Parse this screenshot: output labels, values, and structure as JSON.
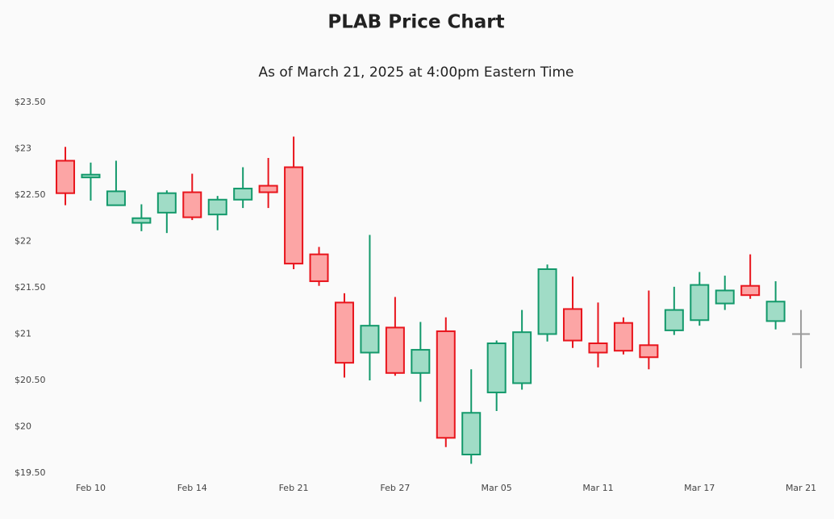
{
  "chart_data": {
    "type": "candlestick",
    "title": "PLAB Price Chart",
    "subtitle": "As of March 21, 2025 at 4:00pm Eastern Time",
    "categories": [
      null,
      "Feb 10",
      null,
      null,
      null,
      "Feb 14",
      null,
      null,
      null,
      "Feb 21",
      null,
      null,
      null,
      "Feb 27",
      null,
      null,
      null,
      "Mar 05",
      null,
      null,
      null,
      "Mar 11",
      null,
      null,
      null,
      "Mar 17",
      null,
      null,
      null,
      "Mar 21"
    ],
    "open": [
      22.87,
      22.69,
      22.39,
      22.2,
      22.31,
      22.53,
      22.29,
      22.45,
      22.6,
      22.8,
      21.86,
      21.34,
      20.8,
      21.07,
      20.58,
      21.03,
      19.7,
      20.37,
      20.47,
      21.0,
      21.27,
      20.9,
      21.12,
      20.88,
      21.04,
      21.15,
      21.33,
      21.52,
      21.14,
      21.0
    ],
    "high": [
      23.02,
      22.85,
      22.87,
      22.4,
      22.55,
      22.73,
      22.49,
      22.8,
      22.9,
      23.13,
      21.94,
      21.44,
      22.07,
      21.4,
      21.13,
      21.18,
      20.62,
      20.93,
      21.26,
      21.75,
      21.62,
      21.34,
      21.18,
      21.47,
      21.51,
      21.67,
      21.63,
      21.86,
      21.57,
      21.26
    ],
    "low": [
      22.39,
      22.44,
      22.39,
      22.11,
      22.09,
      22.23,
      22.12,
      22.36,
      22.36,
      21.7,
      21.52,
      20.53,
      20.5,
      20.55,
      20.27,
      19.78,
      19.6,
      20.17,
      20.4,
      20.92,
      20.85,
      20.64,
      20.78,
      20.62,
      20.99,
      21.09,
      21.26,
      21.38,
      21.05,
      20.63
    ],
    "close": [
      22.52,
      22.72,
      22.54,
      22.25,
      22.52,
      22.26,
      22.45,
      22.57,
      22.53,
      21.76,
      21.57,
      20.69,
      21.09,
      20.58,
      20.83,
      19.88,
      20.15,
      20.9,
      21.02,
      21.7,
      20.93,
      20.8,
      20.82,
      20.75,
      21.26,
      21.53,
      21.47,
      21.42,
      21.35,
      21.0
    ],
    "increasing_color": "#13996b",
    "increasing_fill": "#a0dcc6",
    "decreasing_color": "#e8141c",
    "decreasing_fill": "#fca5a5",
    "unchanged_color": "#9a9a9a",
    "ylim": [
      19.5,
      23.5
    ],
    "yticks": [
      {
        "value": 19.5,
        "label": "$19.50"
      },
      {
        "value": 20,
        "label": "$20"
      },
      {
        "value": 20.5,
        "label": "$20.50"
      },
      {
        "value": 21,
        "label": "$21"
      },
      {
        "value": 21.5,
        "label": "$21.50"
      },
      {
        "value": 22,
        "label": "$22"
      },
      {
        "value": 22.5,
        "label": "$22.50"
      },
      {
        "value": 23,
        "label": "$23"
      },
      {
        "value": 23.5,
        "label": "$23.50"
      }
    ]
  }
}
